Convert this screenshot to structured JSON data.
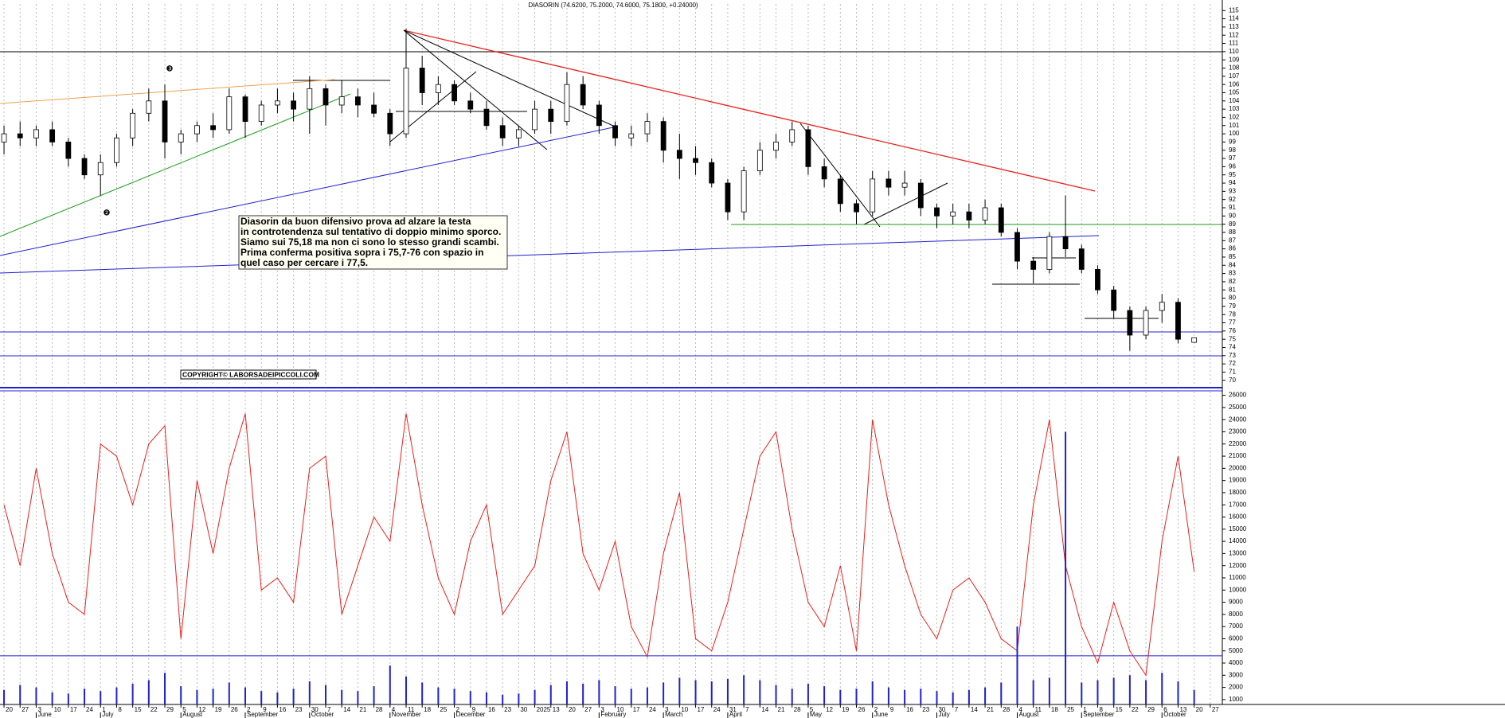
{
  "chart_data": [
    {
      "type": "candlestick",
      "title": "DIASORIN (74.6200, 75.2000, 74.6000, 75.1800, +0.24000)",
      "annotation_lines": [
        "Diasorin da buon difensivo prova ad alzare la testa",
        "in controtendenza sul tentativo di doppio minimo sporco.",
        "Siamo sui 75,18 ma non ci sono lo stesso grandi scambi.",
        "Prima conferma positiva sopra i 75,7-76 con spazio in",
        "quel caso per cercare i 77,5."
      ],
      "copyright": "COPYRIGHT© LABORSADEIPICCOLI.COM",
      "markers": [
        "❸",
        "❷"
      ],
      "up_color": "#ffffff",
      "down_color": "#000000",
      "x": [
        0,
        1,
        2,
        3,
        4,
        5,
        6,
        7,
        8,
        9,
        10,
        11,
        12,
        13,
        14,
        15,
        16,
        17,
        18,
        19,
        20,
        21,
        22,
        23,
        24,
        25,
        26,
        27,
        28,
        29,
        30,
        31,
        32,
        33,
        34,
        35,
        36,
        37,
        38,
        39,
        40,
        41,
        42,
        43,
        44,
        45,
        46,
        47,
        48,
        49,
        50,
        51,
        52,
        53,
        54,
        55,
        56,
        57,
        58,
        59,
        60,
        61,
        62,
        63,
        64,
        65,
        66,
        67,
        68,
        69,
        70,
        71,
        72,
        73,
        74
      ],
      "open": [
        99,
        100,
        99.5,
        100.5,
        99,
        97,
        95,
        96.5,
        99.5,
        102.5,
        104,
        99,
        100,
        101,
        100.5,
        104.5,
        101.5,
        103.5,
        104,
        103,
        105.5,
        103.5,
        104.5,
        103.5,
        102.5,
        100,
        108,
        105,
        106,
        104,
        103,
        101,
        99.5,
        100.5,
        103,
        101.5,
        106,
        103.5,
        101,
        99.5,
        100,
        101.5,
        98,
        97,
        96.5,
        94,
        90.5,
        95.5,
        98,
        99,
        100.5,
        96,
        94.5,
        91.5,
        90.5,
        94.5,
        93.5,
        94,
        91,
        90,
        90.5,
        89.5,
        91,
        88,
        84.5,
        83.5,
        87.5,
        86,
        83.5,
        81,
        78.5,
        75.5,
        78.5,
        79.5,
        74.62
      ],
      "high": [
        101,
        101.5,
        101,
        101.5,
        99.5,
        97.5,
        97.5,
        100,
        103,
        105.5,
        106,
        100.5,
        101.5,
        102.5,
        105.5,
        104.8,
        104,
        105.5,
        105,
        107,
        106,
        106.5,
        105.5,
        105,
        103,
        112.8,
        109.5,
        107,
        106.5,
        105,
        104,
        102,
        101,
        104,
        104,
        107.5,
        107,
        104,
        101.5,
        101,
        102.5,
        102,
        100,
        98.5,
        97,
        94.5,
        96,
        99,
        100,
        101.5,
        101,
        97,
        95,
        92,
        95.5,
        95.5,
        95.5,
        94.5,
        91.5,
        91.5,
        91.5,
        92,
        91.5,
        88.5,
        85,
        88,
        92.5,
        86.5,
        84,
        81.5,
        79,
        79,
        80.5,
        80,
        75.2
      ],
      "low": [
        97.5,
        98.5,
        98.5,
        98.5,
        96,
        94.5,
        92.5,
        96,
        98.5,
        101.5,
        97,
        97.5,
        99,
        99.5,
        100,
        99.5,
        101,
        102.5,
        101.5,
        100,
        101,
        102.5,
        102,
        102,
        98.5,
        99.5,
        103.5,
        103.5,
        103.5,
        102.5,
        100.5,
        98.5,
        98.5,
        100,
        100,
        101,
        103,
        100,
        98.5,
        98.5,
        99,
        96.5,
        94.5,
        95,
        93.5,
        89.5,
        89.5,
        95,
        97,
        98.5,
        95,
        93.5,
        90.5,
        89,
        90,
        92.5,
        92.5,
        90,
        88.5,
        89,
        88.5,
        89,
        87.5,
        83.5,
        81.8,
        83,
        85,
        83,
        80.5,
        77.5,
        73.6,
        75,
        77,
        74.5,
        74.6
      ],
      "close": [
        100,
        99.5,
        100.5,
        99,
        97,
        95,
        96.5,
        99.5,
        102.5,
        104,
        99,
        100,
        101,
        100.5,
        104.5,
        101.5,
        103.5,
        104,
        103,
        105.5,
        103.5,
        104.5,
        103.5,
        102.5,
        100,
        108,
        105,
        106,
        104,
        103,
        101,
        99.5,
        100.5,
        103,
        101.5,
        106,
        103.5,
        101,
        99.5,
        100,
        101.5,
        98,
        97,
        96.5,
        94,
        90.5,
        95.5,
        98,
        99,
        100.5,
        96,
        94.5,
        91.5,
        90.5,
        94.5,
        93.5,
        94,
        91,
        90,
        90.5,
        89.5,
        91,
        88,
        84.5,
        83.5,
        87.5,
        86,
        83.5,
        81,
        78.5,
        75.5,
        78.5,
        79.5,
        75,
        75.18
      ],
      "xlim": [
        -0.25,
        75.75
      ],
      "ylim": [
        69.3,
        115.8
      ],
      "yticks": [
        70,
        71,
        72,
        73,
        74,
        75,
        76,
        77,
        78,
        79,
        80,
        81,
        82,
        83,
        84,
        85,
        86,
        87,
        88,
        89,
        90,
        91,
        92,
        93,
        94,
        95,
        96,
        97,
        98,
        99,
        100,
        101,
        102,
        103,
        104,
        105,
        106,
        107,
        108,
        109,
        110,
        111,
        112,
        113,
        114,
        115
      ],
      "grid": true
    },
    {
      "type": "line_bar",
      "series": [
        {
          "kind": "line",
          "color": "#e8201c",
          "values": [
            17000,
            12000,
            20000,
            13000,
            9000,
            8000,
            22000,
            21000,
            17000,
            22000,
            23500,
            6000,
            19000,
            13000,
            20000,
            24500,
            10000,
            11000,
            9000,
            20000,
            21000,
            8000,
            12000,
            16000,
            14000,
            24500,
            17000,
            11000,
            8000,
            14000,
            17000,
            8000,
            10000,
            12000,
            19000,
            23000,
            13000,
            10000,
            14000,
            7000,
            4500,
            13000,
            18000,
            6000,
            5000,
            9000,
            15000,
            21000,
            23000,
            15000,
            9000,
            7000,
            12000,
            5000,
            24000,
            17000,
            12000,
            8000,
            6000,
            10000,
            11000,
            9000,
            6000,
            5000,
            17000,
            24000,
            12000,
            7000,
            4000,
            9000,
            5000,
            3000,
            14000,
            21000,
            11500
          ]
        },
        {
          "kind": "bar",
          "color": "#2020d0",
          "values": [
            1800,
            2200,
            2000,
            1600,
            1500,
            1900,
            1700,
            2000,
            2300,
            2600,
            3200,
            2100,
            1800,
            1900,
            2400,
            2000,
            1700,
            1600,
            1900,
            2500,
            2200,
            1800,
            1700,
            2100,
            3800,
            2900,
            2400,
            2000,
            1900,
            1700,
            1600,
            1400,
            1500,
            1800,
            2200,
            2500,
            2300,
            2600,
            2100,
            1900,
            2000,
            2400,
            2800,
            2600,
            2500,
            2700,
            3000,
            2600,
            2200,
            1900,
            2300,
            2100,
            1800,
            1900,
            2500,
            2000,
            1800,
            1900,
            1700,
            1600,
            1800,
            2000,
            2400,
            7000,
            2600,
            2800,
            23000,
            2400,
            2600,
            2800,
            3000,
            2600,
            3200,
            2500,
            1800
          ]
        }
      ],
      "hline": 4600,
      "xlim": [
        -0.25,
        75.75
      ],
      "ylim": [
        600,
        26300
      ],
      "yticks": [
        1000,
        2000,
        3000,
        4000,
        5000,
        6000,
        7000,
        8000,
        9000,
        10000,
        11000,
        12000,
        13000,
        14000,
        15000,
        16000,
        17000,
        18000,
        19000,
        20000,
        21000,
        22000,
        23000,
        24000,
        25000,
        26000
      ],
      "xticks": [
        {
          "value": 0,
          "label": "20"
        },
        {
          "value": 1,
          "label": "27"
        },
        {
          "value": 2,
          "label": "3"
        },
        {
          "value": 3,
          "label": "10"
        },
        {
          "value": 4,
          "label": "17"
        },
        {
          "value": 5,
          "label": "24"
        },
        {
          "value": 6,
          "label": "1"
        },
        {
          "value": 7,
          "label": "8"
        },
        {
          "value": 8,
          "label": "15"
        },
        {
          "value": 9,
          "label": "22"
        },
        {
          "value": 10,
          "label": "29"
        },
        {
          "value": 11,
          "label": "5"
        },
        {
          "value": 12,
          "label": "12"
        },
        {
          "value": 13,
          "label": "19"
        },
        {
          "value": 14,
          "label": "26"
        },
        {
          "value": 15,
          "label": "2"
        },
        {
          "value": 16,
          "label": "9"
        },
        {
          "value": 17,
          "label": "16"
        },
        {
          "value": 18,
          "label": "23"
        },
        {
          "value": 19,
          "label": "30"
        },
        {
          "value": 20,
          "label": "7"
        },
        {
          "value": 21,
          "label": "14"
        },
        {
          "value": 22,
          "label": "21"
        },
        {
          "value": 23,
          "label": "28"
        },
        {
          "value": 24,
          "label": "4"
        },
        {
          "value": 25,
          "label": "11"
        },
        {
          "value": 26,
          "label": "18"
        },
        {
          "value": 27,
          "label": "25"
        },
        {
          "value": 28,
          "label": "2"
        },
        {
          "value": 29,
          "label": "9"
        },
        {
          "value": 30,
          "label": "16"
        },
        {
          "value": 31,
          "label": "23"
        },
        {
          "value": 32,
          "label": "30"
        },
        {
          "value": 33,
          "label": "2025"
        },
        {
          "value": 34,
          "label": "13"
        },
        {
          "value": 35,
          "label": "20"
        },
        {
          "value": 36,
          "label": "27"
        },
        {
          "value": 37,
          "label": "3"
        },
        {
          "value": 38,
          "label": "10"
        },
        {
          "value": 39,
          "label": "17"
        },
        {
          "value": 40,
          "label": "24"
        },
        {
          "value": 41,
          "label": "3"
        },
        {
          "value": 42,
          "label": "10"
        },
        {
          "value": 43,
          "label": "17"
        },
        {
          "value": 44,
          "label": "24"
        },
        {
          "value": 45,
          "label": "31"
        },
        {
          "value": 46,
          "label": "7"
        },
        {
          "value": 47,
          "label": "14"
        },
        {
          "value": 48,
          "label": "21"
        },
        {
          "value": 49,
          "label": "28"
        },
        {
          "value": 50,
          "label": "5"
        },
        {
          "value": 51,
          "label": "12"
        },
        {
          "value": 52,
          "label": "19"
        },
        {
          "value": 53,
          "label": "26"
        },
        {
          "value": 54,
          "label": "2"
        },
        {
          "value": 55,
          "label": "9"
        },
        {
          "value": 56,
          "label": "16"
        },
        {
          "value": 57,
          "label": "23"
        },
        {
          "value": 58,
          "label": "30"
        },
        {
          "value": 59,
          "label": "7"
        },
        {
          "value": 60,
          "label": "14"
        },
        {
          "value": 61,
          "label": "21"
        },
        {
          "value": 62,
          "label": "28"
        },
        {
          "value": 63,
          "label": "4"
        },
        {
          "value": 64,
          "label": "11"
        },
        {
          "value": 65,
          "label": "18"
        },
        {
          "value": 66,
          "label": "25"
        },
        {
          "value": 67,
          "label": "1"
        },
        {
          "value": 68,
          "label": "8"
        },
        {
          "value": 69,
          "label": "15"
        },
        {
          "value": 70,
          "label": "22"
        },
        {
          "value": 71,
          "label": "29"
        },
        {
          "value": 72,
          "label": "6"
        },
        {
          "value": 73,
          "label": "13"
        },
        {
          "value": 74,
          "label": "20"
        },
        {
          "value": 75,
          "label": "27"
        }
      ],
      "month_labels": [
        {
          "value": 2,
          "label": "June"
        },
        {
          "value": 6,
          "label": "July"
        },
        {
          "value": 11,
          "label": "August"
        },
        {
          "value": 15,
          "label": "September"
        },
        {
          "value": 19,
          "label": "October"
        },
        {
          "value": 24,
          "label": "November"
        },
        {
          "value": 28,
          "label": "December"
        },
        {
          "value": 37,
          "label": "February"
        },
        {
          "value": 41,
          "label": "March"
        },
        {
          "value": 45,
          "label": "April"
        },
        {
          "value": 50,
          "label": "May"
        },
        {
          "value": 54,
          "label": "June"
        },
        {
          "value": 58,
          "label": "July"
        },
        {
          "value": 63,
          "label": "August"
        },
        {
          "value": 67,
          "label": "September"
        },
        {
          "value": 72,
          "label": "October"
        }
      ],
      "grid": true
    }
  ]
}
